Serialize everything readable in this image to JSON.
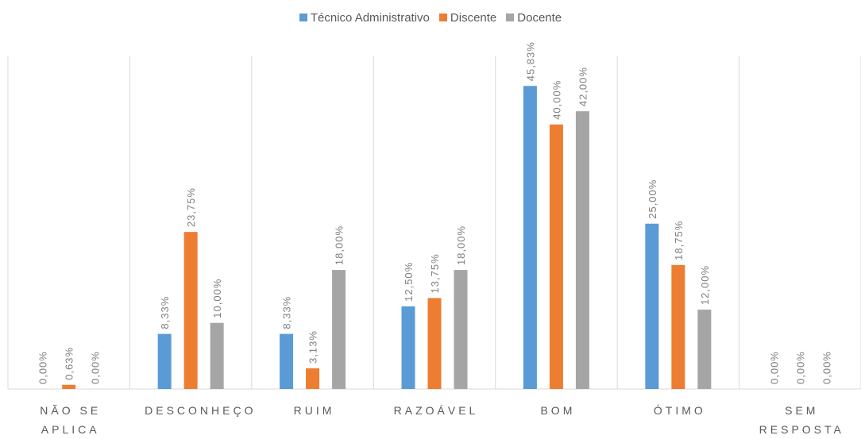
{
  "chart_data": {
    "type": "bar",
    "categories": [
      "NÃO SE APLICA",
      "DESCONHEÇO",
      "RUIM",
      "RAZOÁVEL",
      "BOM",
      "ÓTIMO",
      "SEM RESPOSTA"
    ],
    "series": [
      {
        "name": "Técnico Administrativo",
        "color": "#5b9bd5",
        "values": [
          0,
          8.33,
          8.33,
          12.5,
          45.83,
          25,
          0
        ],
        "value_labels": [
          "0,00%",
          "8,33%",
          "8,33%",
          "12,50%",
          "45,83%",
          "25,00%",
          "0,00%"
        ]
      },
      {
        "name": "Discente",
        "color": "#ed7d31",
        "values": [
          0.63,
          23.75,
          3.13,
          13.75,
          40,
          18.75,
          0
        ],
        "value_labels": [
          "0,63%",
          "23,75%",
          "3,13%",
          "13,75%",
          "40,00%",
          "18,75%",
          "0,00%"
        ]
      },
      {
        "name": "Docente",
        "color": "#a5a5a5",
        "values": [
          0,
          10,
          18,
          18,
          42,
          12,
          0
        ],
        "value_labels": [
          "0,00%",
          "10,00%",
          "18,00%",
          "18,00%",
          "42,00%",
          "12,00%",
          "0,00%"
        ]
      }
    ],
    "ylim": [
      0,
      50
    ],
    "legend": "top"
  }
}
